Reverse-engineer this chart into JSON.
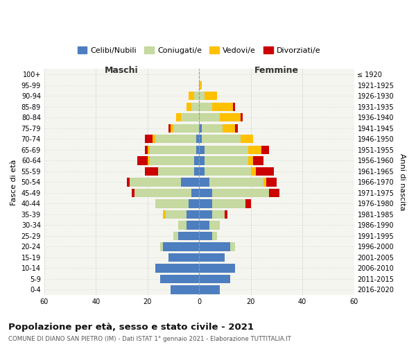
{
  "age_groups": [
    "0-4",
    "5-9",
    "10-14",
    "15-19",
    "20-24",
    "25-29",
    "30-34",
    "35-39",
    "40-44",
    "45-49",
    "50-54",
    "55-59",
    "60-64",
    "65-69",
    "70-74",
    "75-79",
    "80-84",
    "85-89",
    "90-94",
    "95-99",
    "100+"
  ],
  "birth_years": [
    "2016-2020",
    "2011-2015",
    "2006-2010",
    "2001-2005",
    "1996-2000",
    "1991-1995",
    "1986-1990",
    "1981-1985",
    "1976-1980",
    "1971-1975",
    "1966-1970",
    "1961-1965",
    "1956-1960",
    "1951-1955",
    "1946-1950",
    "1941-1945",
    "1936-1940",
    "1931-1935",
    "1926-1930",
    "1921-1925",
    "≤ 1920"
  ],
  "male": {
    "celibi": [
      11,
      15,
      17,
      12,
      14,
      8,
      5,
      5,
      4,
      3,
      7,
      2,
      2,
      1,
      1,
      0,
      0,
      0,
      0,
      0,
      0
    ],
    "coniugati": [
      0,
      0,
      0,
      0,
      1,
      2,
      3,
      8,
      13,
      22,
      20,
      14,
      17,
      18,
      16,
      10,
      7,
      3,
      2,
      0,
      0
    ],
    "vedovi": [
      0,
      0,
      0,
      0,
      0,
      0,
      0,
      1,
      0,
      0,
      0,
      0,
      1,
      1,
      1,
      1,
      2,
      2,
      2,
      0,
      0
    ],
    "divorziati": [
      0,
      0,
      0,
      0,
      0,
      0,
      0,
      0,
      0,
      1,
      1,
      5,
      4,
      1,
      3,
      1,
      0,
      0,
      0,
      0,
      0
    ]
  },
  "female": {
    "nubili": [
      8,
      12,
      14,
      10,
      12,
      5,
      4,
      5,
      5,
      5,
      4,
      2,
      2,
      2,
      1,
      1,
      0,
      0,
      0,
      0,
      0
    ],
    "coniugate": [
      0,
      0,
      0,
      0,
      2,
      2,
      4,
      5,
      13,
      22,
      21,
      18,
      17,
      17,
      15,
      8,
      8,
      5,
      2,
      0,
      0
    ],
    "vedove": [
      0,
      0,
      0,
      0,
      0,
      0,
      0,
      0,
      0,
      0,
      1,
      2,
      2,
      5,
      5,
      5,
      8,
      8,
      5,
      1,
      0
    ],
    "divorziate": [
      0,
      0,
      0,
      0,
      0,
      0,
      0,
      1,
      2,
      4,
      4,
      7,
      4,
      3,
      0,
      1,
      1,
      1,
      0,
      0,
      0
    ]
  },
  "colors": {
    "celibi": "#4d7ebf",
    "coniugati": "#c5d9a0",
    "vedovi": "#ffc000",
    "divorziati": "#cc0000"
  },
  "xlim": 60,
  "title": "Popolazione per età, sesso e stato civile - 2021",
  "subtitle": "COMUNE DI DIANO SAN PIETRO (IM) - Dati ISTAT 1° gennaio 2021 - Elaborazione TUTTITALIA.IT",
  "ylabel_left": "Fasce di età",
  "ylabel_right": "Anni di nascita",
  "label_maschi": "Maschi",
  "label_femmine": "Femmine",
  "legend_labels": [
    "Celibi/Nubili",
    "Coniugati/e",
    "Vedovi/e",
    "Divorziati/e"
  ],
  "bg_color": "#ffffff",
  "plot_bg": "#f5f5f0",
  "grid_color": "#cccccc"
}
